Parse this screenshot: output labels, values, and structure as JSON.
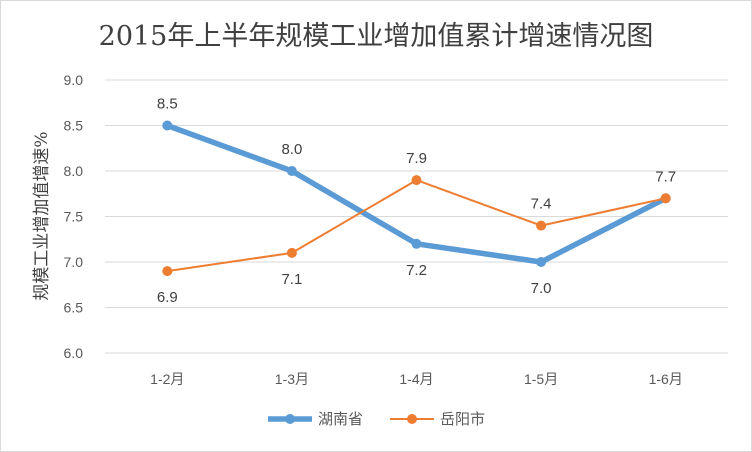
{
  "chart_data": {
    "type": "line",
    "title": "2015年上半年规模工业增加值累计增速情况图",
    "xlabel": "",
    "ylabel": "规模工业增加值增速%",
    "categories": [
      "1-2月",
      "1-3月",
      "1-4月",
      "1-5月",
      "1-6月"
    ],
    "ylim": [
      6.0,
      9.0
    ],
    "yticks": [
      "6.0",
      "6.5",
      "7.0",
      "7.5",
      "8.0",
      "8.5",
      "9.0"
    ],
    "grid": true,
    "legend_position": "bottom",
    "series": [
      {
        "name": "湖南省",
        "color": "#5b9bd5",
        "values": [
          8.5,
          8.0,
          7.2,
          7.0,
          7.7
        ],
        "labels": [
          "8.5",
          "8.0",
          "7.2",
          "7.0",
          ""
        ],
        "label_pos": [
          "above",
          "above",
          "below",
          "below",
          "none"
        ]
      },
      {
        "name": "岳阳市",
        "color": "#ed7d31",
        "values": [
          6.9,
          7.1,
          7.9,
          7.4,
          7.7
        ],
        "labels": [
          "6.9",
          "7.1",
          "7.9",
          "7.4",
          "7.7"
        ],
        "label_pos": [
          "below",
          "below",
          "above",
          "above",
          "above"
        ]
      }
    ]
  }
}
